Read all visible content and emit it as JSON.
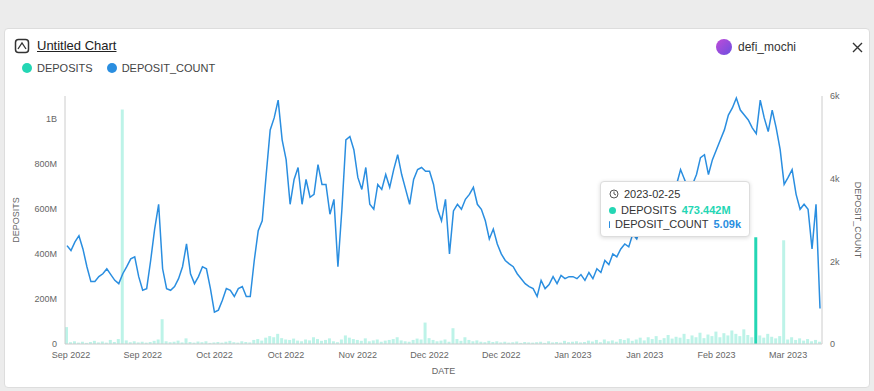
{
  "chart_data": {
    "type": "combo",
    "title": "Untitled Chart",
    "annotations": [
      "defi_mochi"
    ],
    "xlabel": "DATE",
    "ylabel": "DEPOSITS",
    "y2label": "DEPOSIT_COUNT",
    "legend": "top",
    "grid": false,
    "categories": [
      null,
      "Sep 2022",
      null,
      null,
      null,
      null,
      null,
      null,
      null,
      null,
      null,
      null,
      null,
      null,
      null,
      null,
      null,
      null,
      null,
      "Sep 2022",
      null,
      null,
      null,
      null,
      null,
      null,
      null,
      null,
      null,
      null,
      null,
      null,
      null,
      null,
      null,
      null,
      null,
      "Oct 2022",
      null,
      null,
      null,
      null,
      null,
      null,
      null,
      null,
      null,
      null,
      null,
      null,
      null,
      null,
      null,
      null,
      null,
      "Oct 2022",
      null,
      null,
      null,
      null,
      null,
      null,
      null,
      null,
      null,
      null,
      null,
      null,
      null,
      null,
      null,
      null,
      null,
      "Nov 2022",
      null,
      null,
      null,
      null,
      null,
      null,
      null,
      null,
      null,
      null,
      null,
      null,
      null,
      null,
      null,
      null,
      null,
      "Dec 2022",
      null,
      null,
      null,
      null,
      null,
      null,
      null,
      null,
      null,
      null,
      null,
      null,
      null,
      null,
      null,
      null,
      null,
      "Dec 2022",
      null,
      null,
      null,
      null,
      null,
      null,
      null,
      null,
      null,
      null,
      null,
      null,
      null,
      null,
      null,
      null,
      null,
      "Jan 2023",
      null,
      null,
      null,
      null,
      null,
      null,
      null,
      null,
      null,
      null,
      null,
      null,
      null,
      null,
      null,
      null,
      null,
      "Jan 2023",
      null,
      null,
      null,
      null,
      null,
      null,
      null,
      null,
      null,
      null,
      null,
      null,
      null,
      null,
      null,
      null,
      null,
      "Feb 2023",
      null,
      null,
      null,
      null,
      null,
      null,
      null,
      null,
      null,
      null,
      null,
      null,
      null,
      null,
      null,
      null,
      null,
      "Mar 2023",
      null,
      null,
      null,
      null,
      null,
      null,
      null,
      null
    ],
    "series": [
      {
        "name": "DEPOSITS",
        "type": "bar",
        "color": "#24d6b4",
        "values": [
          75000000,
          8000000,
          12000000,
          6000000,
          10000000,
          5000000,
          9000000,
          14000000,
          7000000,
          11000000,
          6000000,
          18000000,
          9000000,
          22000000,
          1040000000,
          16000000,
          8000000,
          12000000,
          7000000,
          10000000,
          6000000,
          9000000,
          14000000,
          20000000,
          110000000,
          12000000,
          8000000,
          10000000,
          15000000,
          7000000,
          25000000,
          9000000,
          6000000,
          11000000,
          8000000,
          12000000,
          5000000,
          7000000,
          9000000,
          6000000,
          10000000,
          14000000,
          8000000,
          6000000,
          12000000,
          9000000,
          7000000,
          18000000,
          22000000,
          15000000,
          28000000,
          35000000,
          30000000,
          45000000,
          26000000,
          20000000,
          18000000,
          24000000,
          15000000,
          12000000,
          20000000,
          16000000,
          30000000,
          22000000,
          14000000,
          18000000,
          25000000,
          12000000,
          8000000,
          20000000,
          38000000,
          28000000,
          22000000,
          18000000,
          14000000,
          25000000,
          12000000,
          16000000,
          20000000,
          10000000,
          15000000,
          18000000,
          22000000,
          30000000,
          16000000,
          12000000,
          10000000,
          18000000,
          24000000,
          20000000,
          95000000,
          26000000,
          18000000,
          12000000,
          15000000,
          20000000,
          10000000,
          70000000,
          22000000,
          14000000,
          30000000,
          18000000,
          12000000,
          16000000,
          10000000,
          8000000,
          14000000,
          9000000,
          12000000,
          7000000,
          10000000,
          6000000,
          8000000,
          11000000,
          5000000,
          9000000,
          7000000,
          6000000,
          8000000,
          10000000,
          5000000,
          12000000,
          7000000,
          9000000,
          6000000,
          14000000,
          8000000,
          10000000,
          12000000,
          7000000,
          9000000,
          15000000,
          11000000,
          18000000,
          8000000,
          20000000,
          12000000,
          16000000,
          10000000,
          22000000,
          18000000,
          25000000,
          14000000,
          20000000,
          28000000,
          16000000,
          30000000,
          22000000,
          35000000,
          18000000,
          26000000,
          40000000,
          24000000,
          32000000,
          28000000,
          45000000,
          22000000,
          38000000,
          30000000,
          50000000,
          26000000,
          42000000,
          35000000,
          55000000,
          30000000,
          48000000,
          38000000,
          60000000,
          45000000,
          35000000,
          65000000,
          40000000,
          30000000,
          473442000,
          38000000,
          28000000,
          45000000,
          32000000,
          25000000,
          35000000,
          460000000,
          20000000,
          30000000,
          18000000,
          25000000,
          15000000,
          22000000,
          12000000,
          18000000,
          10000000
        ]
      },
      {
        "name": "DEPOSIT_COUNT",
        "type": "line",
        "color": "#2a8ee0",
        "axis": "y2",
        "values": [
          2380,
          2260,
          2470,
          2620,
          2300,
          1870,
          1510,
          1510,
          1630,
          1700,
          1820,
          1680,
          1540,
          1460,
          1700,
          1870,
          2060,
          2110,
          1630,
          1300,
          1340,
          2020,
          2780,
          3380,
          1820,
          1340,
          1300,
          1390,
          1580,
          1870,
          2420,
          1700,
          1460,
          1630,
          1870,
          1820,
          1340,
          770,
          820,
          1060,
          1340,
          1300,
          1150,
          1340,
          1390,
          1150,
          1150,
          2020,
          2740,
          2980,
          4100,
          5180,
          5470,
          5900,
          4940,
          4460,
          3380,
          3980,
          4270,
          3380,
          3980,
          3550,
          3620,
          4340,
          3860,
          3860,
          3140,
          3500,
          1870,
          3260,
          4940,
          5020,
          4700,
          4030,
          3740,
          4270,
          3380,
          3260,
          3860,
          3740,
          4100,
          3790,
          4220,
          4580,
          4100,
          3740,
          3380,
          3980,
          4220,
          4270,
          4180,
          4180,
          3860,
          3260,
          2980,
          3500,
          2180,
          3220,
          3380,
          3260,
          3500,
          3620,
          3790,
          3380,
          3260,
          2980,
          2540,
          2780,
          2420,
          2180,
          2020,
          1940,
          1870,
          1700,
          1580,
          1460,
          1390,
          1340,
          1150,
          1540,
          1340,
          1440,
          1630,
          1460,
          1660,
          1580,
          1630,
          1630,
          1580,
          1680,
          1540,
          1730,
          1580,
          1820,
          1730,
          2020,
          1920,
          2180,
          2110,
          2300,
          2420,
          2350,
          2660,
          2540,
          2830,
          2660,
          3020,
          2900,
          3140,
          3380,
          3260,
          3620,
          3380,
          3860,
          4220,
          3980,
          3740,
          3860,
          4100,
          4510,
          4580,
          4100,
          4460,
          4700,
          4940,
          5180,
          5540,
          5710,
          5950,
          5660,
          5540,
          5420,
          5230,
          5090,
          5900,
          5470,
          5140,
          5660,
          5230,
          4700,
          3860,
          4030,
          4220,
          3620,
          3260,
          3380,
          3260,
          2300,
          3380,
          860
        ]
      }
    ],
    "ylim": [
      0,
      1100000000
    ],
    "yticks": [
      0,
      {
        "value": 200000000,
        "label": "200M"
      },
      {
        "value": 400000000,
        "label": "400M"
      },
      {
        "value": 600000000,
        "label": "600M"
      },
      {
        "value": 800000000,
        "label": "800M"
      },
      {
        "value": 1000000000,
        "label": "1B"
      }
    ],
    "y2lim": [
      0,
      6000
    ],
    "y2ticks": [
      0,
      {
        "value": 2000,
        "label": "2k"
      },
      {
        "value": 4000,
        "label": "4k"
      },
      {
        "value": 6000,
        "label": "6k"
      }
    ],
    "tooltip": {
      "x": "2023-02-25",
      "items": [
        {
          "name": "DEPOSITS",
          "value": 473442000,
          "label": "473.442M"
        },
        {
          "name": "DEPOSIT_COUNT",
          "value": 5090,
          "label": "5.09k"
        }
      ]
    }
  }
}
